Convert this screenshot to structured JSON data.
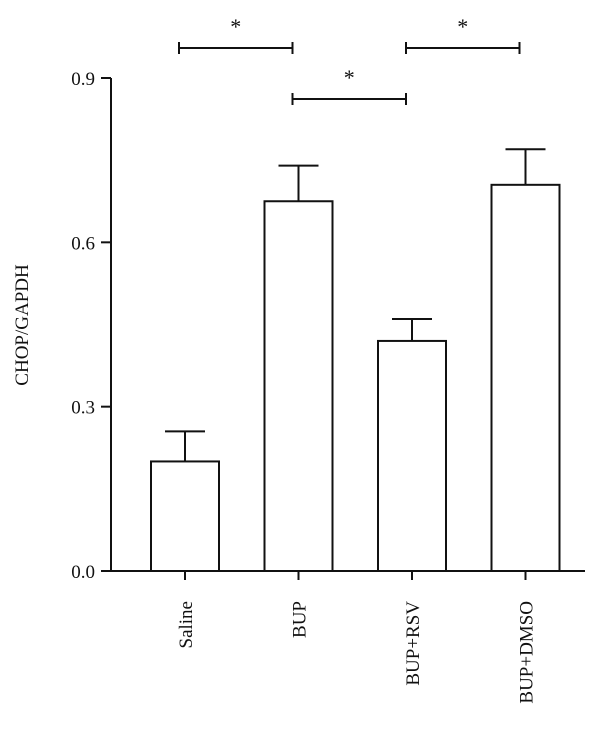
{
  "chart_data": {
    "type": "bar",
    "title": "",
    "xlabel": "",
    "ylabel": "CHOP/GAPDH",
    "ylim": [
      0,
      0.9
    ],
    "yticks": [
      "0.0",
      "0.3",
      "0.6",
      "0.9"
    ],
    "categories": [
      "Saline",
      "BUP",
      "BUP+RSV",
      "BUP+DMSO"
    ],
    "values": [
      0.2,
      0.675,
      0.42,
      0.705
    ],
    "errors": [
      0.055,
      0.065,
      0.04,
      0.065
    ],
    "grid": false,
    "bar_fill": "#ffffff",
    "bar_stroke": "#111111",
    "significance": [
      {
        "from": 0,
        "to": 1,
        "label": "*"
      },
      {
        "from": 2,
        "to": 3,
        "label": "*"
      },
      {
        "from": 1,
        "to": 2,
        "label": "*"
      }
    ]
  }
}
